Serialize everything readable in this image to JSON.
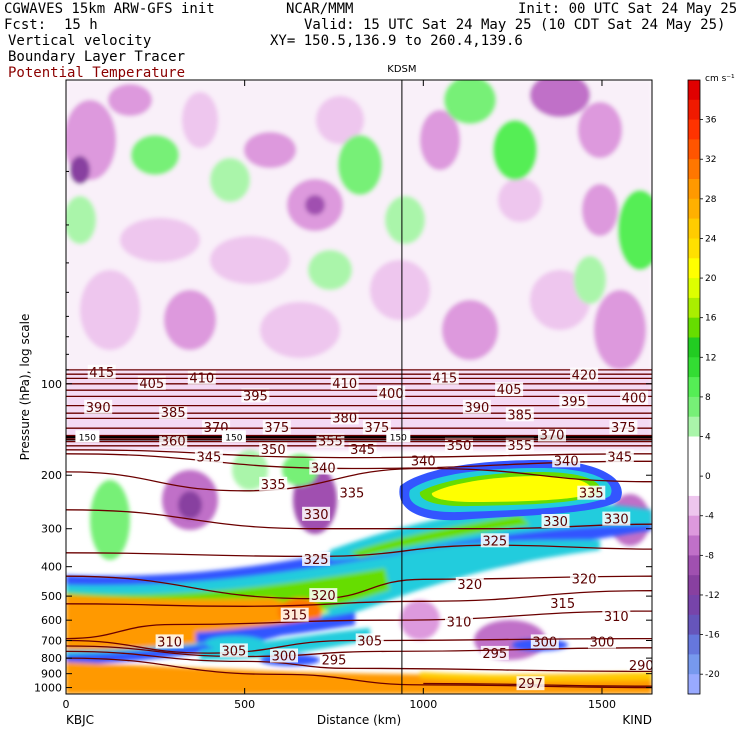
{
  "header": {
    "line1_left": "CGWAVES 15km ARW-GFS init",
    "line1_mid": "NCAR/MMM",
    "line1_right": "Init: 00 UTC Sat 24 May 25",
    "fcst_label": "Fcst:",
    "fcst_value": "15 h",
    "valid": "Valid: 15 UTC Sat 24 May 25 (10 CDT Sat 24 May 25)",
    "field1": "Vertical velocity",
    "field2": "Boundary Layer Tracer",
    "field3": "Potential Temperature",
    "xy": "XY= 150.5,136.9 to 260.4,139.6"
  },
  "colors": {
    "theta": "#6b0000",
    "title3": "#8b0000"
  },
  "chart_data": {
    "type": "heatmap",
    "description_units": "cm s-1",
    "colorbar": {
      "unit": "cm s⁻¹",
      "ticks": [
        36,
        32,
        28,
        24,
        20,
        16,
        12,
        8,
        4,
        0,
        -4,
        -8,
        -12,
        -16,
        -20
      ],
      "bins": [
        {
          "from": 38,
          "to": 40,
          "color": "#e00000"
        },
        {
          "from": 36,
          "to": 38,
          "color": "#f01a00"
        },
        {
          "from": 34,
          "to": 36,
          "color": "#ff3300"
        },
        {
          "from": 32,
          "to": 34,
          "color": "#ff5500"
        },
        {
          "from": 30,
          "to": 32,
          "color": "#ff7700"
        },
        {
          "from": 28,
          "to": 30,
          "color": "#ff9900"
        },
        {
          "from": 26,
          "to": 28,
          "color": "#ffb000"
        },
        {
          "from": 24,
          "to": 26,
          "color": "#ffcc00"
        },
        {
          "from": 22,
          "to": 24,
          "color": "#ffe000"
        },
        {
          "from": 20,
          "to": 22,
          "color": "#ffff00"
        },
        {
          "from": 18,
          "to": 20,
          "color": "#ddff00"
        },
        {
          "from": 16,
          "to": 18,
          "color": "#aaee00"
        },
        {
          "from": 14,
          "to": 16,
          "color": "#66dd00"
        },
        {
          "from": 12,
          "to": 14,
          "color": "#22cc22"
        },
        {
          "from": 10,
          "to": 12,
          "color": "#33dd33"
        },
        {
          "from": 8,
          "to": 10,
          "color": "#55ee55"
        },
        {
          "from": 6,
          "to": 8,
          "color": "#77f077"
        },
        {
          "from": 4,
          "to": 6,
          "color": "#aaf5aa"
        },
        {
          "from": 2,
          "to": 4,
          "color": "#ffffff"
        },
        {
          "from": 0,
          "to": 2,
          "color": "#ffffff"
        },
        {
          "from": -2,
          "to": 0,
          "color": "#ffffff"
        },
        {
          "from": -4,
          "to": -2,
          "color": "#eec6ee"
        },
        {
          "from": -6,
          "to": -4,
          "color": "#dd99dd"
        },
        {
          "from": -8,
          "to": -6,
          "color": "#c070c8"
        },
        {
          "from": -10,
          "to": -8,
          "color": "#a050b0"
        },
        {
          "from": -12,
          "to": -10,
          "color": "#8840a0"
        },
        {
          "from": -14,
          "to": -12,
          "color": "#7744aa"
        },
        {
          "from": -16,
          "to": -14,
          "color": "#6655bb"
        },
        {
          "from": -18,
          "to": -16,
          "color": "#6677dd"
        },
        {
          "from": -20,
          "to": -18,
          "color": "#7799ee"
        },
        {
          "from": -22,
          "to": -20,
          "color": "#99aaff"
        }
      ]
    },
    "x_axis": {
      "label": "Distance (km)",
      "range": [
        0,
        1640
      ],
      "ticks": [
        0,
        500,
        1000,
        1500
      ],
      "left_station": "KBJC",
      "right_station": "KIND",
      "marker_station": "KDSM",
      "marker_km": 940
    },
    "y_axis": {
      "label": "Pressure (hPa), log scale",
      "scale": "log",
      "range": [
        1050,
        10
      ],
      "ticks": [
        100,
        200,
        300,
        400,
        500,
        600,
        700,
        800,
        900,
        1000
      ]
    },
    "tracer_label": "150",
    "tracer_label_km": [
      60,
      470,
      930
    ],
    "theta_contours": [
      {
        "value": 290,
        "points": [
          [
            0,
            800
          ],
          [
            600,
            905
          ],
          [
            1000,
            980
          ],
          [
            1640,
            1000
          ]
        ],
        "labels": [
          [
            1610,
            848
          ]
        ]
      },
      {
        "value": 295,
        "points": [
          [
            0,
            760
          ],
          [
            500,
            820
          ],
          [
            800,
            865
          ],
          [
            1640,
            885
          ]
        ],
        "labels": [
          [
            750,
            815
          ],
          [
            1200,
            775
          ]
        ]
      },
      {
        "value": 297,
        "points": [
          [
            1000,
            970
          ],
          [
            1640,
            990
          ]
        ],
        "labels": [
          [
            1300,
            975
          ]
        ]
      },
      {
        "value": 300,
        "points": [
          [
            0,
            730
          ],
          [
            500,
            790
          ],
          [
            900,
            760
          ],
          [
            1640,
            740
          ]
        ],
        "labels": [
          [
            610,
            790
          ],
          [
            1340,
            710
          ],
          [
            1500,
            710
          ]
        ]
      },
      {
        "value": 305,
        "points": [
          [
            0,
            700
          ],
          [
            400,
            770
          ],
          [
            800,
            700
          ],
          [
            1640,
            690
          ]
        ],
        "labels": [
          [
            470,
            760
          ],
          [
            850,
            705
          ]
        ]
      },
      {
        "value": 310,
        "points": [
          [
            0,
            690
          ],
          [
            300,
            620
          ],
          [
            900,
            600
          ],
          [
            1640,
            560
          ]
        ],
        "labels": [
          [
            290,
            710
          ],
          [
            1100,
            610
          ],
          [
            1540,
            585
          ]
        ]
      },
      {
        "value": 315,
        "points": [
          [
            0,
            530
          ],
          [
            500,
            540
          ],
          [
            1000,
            520
          ],
          [
            1640,
            480
          ]
        ],
        "labels": [
          [
            640,
            580
          ],
          [
            1390,
            530
          ]
        ]
      },
      {
        "value": 320,
        "points": [
          [
            0,
            430
          ],
          [
            700,
            510
          ],
          [
            1000,
            440
          ],
          [
            1640,
            430
          ]
        ],
        "labels": [
          [
            720,
            500
          ],
          [
            1130,
            460
          ],
          [
            1450,
            440
          ]
        ]
      },
      {
        "value": 325,
        "points": [
          [
            0,
            360
          ],
          [
            700,
            370
          ],
          [
            1200,
            340
          ],
          [
            1640,
            350
          ]
        ],
        "labels": [
          [
            700,
            380
          ],
          [
            1200,
            330
          ]
        ]
      },
      {
        "value": 330,
        "points": [
          [
            0,
            260
          ],
          [
            700,
            300
          ],
          [
            1200,
            300
          ],
          [
            1640,
            290
          ]
        ],
        "labels": [
          [
            700,
            270
          ],
          [
            1370,
            285
          ],
          [
            1540,
            280
          ]
        ]
      },
      {
        "value": 335,
        "points": [
          [
            0,
            195
          ],
          [
            500,
            225
          ],
          [
            1000,
            190
          ],
          [
            1640,
            210
          ]
        ],
        "labels": [
          [
            580,
            215
          ],
          [
            800,
            230
          ],
          [
            1470,
            230
          ]
        ]
      },
      {
        "value": 340,
        "points": [
          [
            0,
            170
          ],
          [
            800,
            190
          ],
          [
            1640,
            180
          ]
        ],
        "labels": [
          [
            720,
            190
          ],
          [
            1000,
            180
          ],
          [
            1400,
            180
          ]
        ]
      },
      {
        "value": 345,
        "points": [
          [
            0,
            165
          ],
          [
            800,
            175
          ],
          [
            1640,
            170
          ]
        ],
        "labels": [
          [
            400,
            175
          ],
          [
            830,
            165
          ],
          [
            1550,
            175
          ]
        ]
      },
      {
        "value": 350,
        "points": [
          [
            0,
            160
          ],
          [
            1640,
            160
          ]
        ],
        "labels": [
          [
            580,
            165
          ],
          [
            1100,
            160
          ]
        ]
      },
      {
        "value": 355,
        "points": [
          [
            0,
            155
          ],
          [
            1640,
            155
          ]
        ],
        "labels": [
          [
            740,
            155
          ],
          [
            1270,
            160
          ]
        ]
      },
      {
        "value": 360,
        "points": [
          [
            0,
            152
          ],
          [
            1640,
            152
          ]
        ],
        "labels": [
          [
            300,
            155
          ]
        ]
      },
      {
        "value": 370,
        "points": [
          [
            0,
            148
          ],
          [
            1640,
            148
          ]
        ],
        "labels": [
          [
            420,
            140
          ],
          [
            1360,
            148
          ]
        ]
      },
      {
        "value": 375,
        "points": [
          [
            0,
            140
          ],
          [
            1640,
            140
          ]
        ],
        "labels": [
          [
            590,
            140
          ],
          [
            870,
            140
          ],
          [
            1560,
            140
          ]
        ]
      },
      {
        "value": 380,
        "points": [
          [
            0,
            130
          ],
          [
            1640,
            130
          ]
        ],
        "labels": [
          [
            780,
            130
          ]
        ]
      },
      {
        "value": 385,
        "points": [
          [
            0,
            125
          ],
          [
            1640,
            125
          ]
        ],
        "labels": [
          [
            300,
            125
          ],
          [
            1270,
            127
          ]
        ]
      },
      {
        "value": 390,
        "points": [
          [
            0,
            118
          ],
          [
            1640,
            118
          ]
        ],
        "labels": [
          [
            90,
            120
          ],
          [
            1150,
            120
          ]
        ]
      },
      {
        "value": 395,
        "points": [
          [
            0,
            110
          ],
          [
            1640,
            110
          ]
        ],
        "labels": [
          [
            530,
            110
          ],
          [
            1420,
            115
          ]
        ]
      },
      {
        "value": 400,
        "points": [
          [
            0,
            105
          ],
          [
            1640,
            105
          ]
        ],
        "labels": [
          [
            910,
            108
          ],
          [
            1590,
            112
          ]
        ]
      },
      {
        "value": 405,
        "points": [
          [
            0,
            100
          ],
          [
            1640,
            100
          ]
        ],
        "labels": [
          [
            240,
            100
          ],
          [
            1240,
            105
          ]
        ]
      },
      {
        "value": 410,
        "points": [
          [
            0,
            96
          ],
          [
            1640,
            96
          ]
        ],
        "labels": [
          [
            380,
            96
          ],
          [
            780,
            100
          ]
        ]
      },
      {
        "value": 415,
        "points": [
          [
            0,
            93
          ],
          [
            1640,
            93
          ]
        ],
        "labels": [
          [
            100,
            92
          ],
          [
            1060,
            96
          ]
        ]
      },
      {
        "value": 420,
        "points": [
          [
            0,
            90
          ],
          [
            1640,
            90
          ]
        ],
        "labels": [
          [
            1450,
            94
          ]
        ]
      }
    ]
  }
}
